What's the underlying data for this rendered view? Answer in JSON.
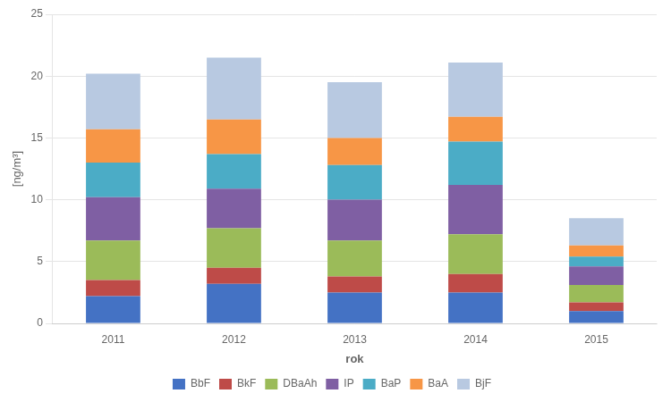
{
  "chart_data": {
    "type": "bar",
    "stacked": true,
    "xlabel": "rok",
    "ylabel": "[ng/m³]",
    "categories": [
      "2011",
      "2012",
      "2013",
      "2014",
      "2015"
    ],
    "series": [
      {
        "name": "BbF",
        "color": "#4472C4",
        "values": [
          2.2,
          3.2,
          2.5,
          2.5,
          1.0
        ]
      },
      {
        "name": "BkF",
        "color": "#BE4B48",
        "values": [
          1.3,
          1.3,
          1.3,
          1.5,
          0.7
        ]
      },
      {
        "name": "DBaAh",
        "color": "#9BBB59",
        "values": [
          3.2,
          3.2,
          2.9,
          3.2,
          1.4
        ]
      },
      {
        "name": "IP",
        "color": "#7F5FA3",
        "values": [
          3.5,
          3.2,
          3.3,
          4.0,
          1.5
        ]
      },
      {
        "name": "BaP",
        "color": "#4BACC6",
        "values": [
          2.8,
          2.8,
          2.8,
          3.5,
          0.8
        ]
      },
      {
        "name": "BaA",
        "color": "#F79646",
        "values": [
          2.7,
          2.8,
          2.2,
          2.0,
          0.9
        ]
      },
      {
        "name": "BjF",
        "color": "#B8C9E1",
        "values": [
          4.5,
          5.0,
          4.5,
          4.4,
          2.2
        ]
      }
    ],
    "ylim": [
      0,
      25
    ],
    "yticks": [
      0,
      5,
      10,
      15,
      20,
      25
    ],
    "grid": "y",
    "legend": "bottom"
  }
}
